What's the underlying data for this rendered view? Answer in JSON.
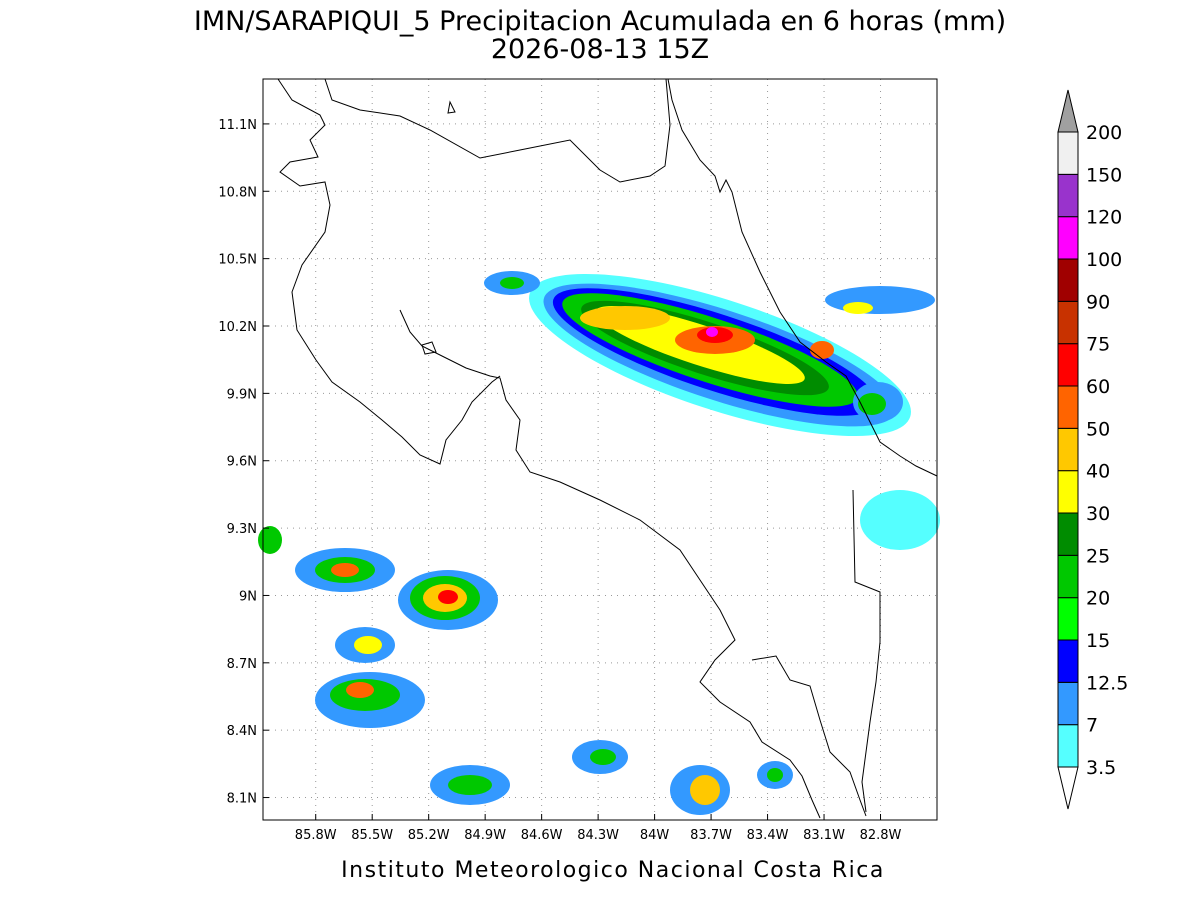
{
  "map": {
    "title": "IMN/SARAPIQUI_5 Precipitacion Acumulada en 6 horas (mm)",
    "subtitle": "2026-08-13 15Z",
    "footer": "Instituto Meteorologico Nacional Costa Rica",
    "lon_range": [
      -86.08,
      -82.5
    ],
    "lat_range": [
      8.0,
      11.3
    ],
    "lon_ticks": [
      {
        "value": -85.8,
        "label": "85.8W"
      },
      {
        "value": -85.5,
        "label": "85.5W"
      },
      {
        "value": -85.2,
        "label": "85.2W"
      },
      {
        "value": -84.9,
        "label": "84.9W"
      },
      {
        "value": -84.6,
        "label": "84.6W"
      },
      {
        "value": -84.3,
        "label": "84.3W"
      },
      {
        "value": -84.0,
        "label": "84W"
      },
      {
        "value": -83.7,
        "label": "83.7W"
      },
      {
        "value": -83.4,
        "label": "83.4W"
      },
      {
        "value": -83.1,
        "label": "83.1W"
      },
      {
        "value": -82.8,
        "label": "82.8W"
      }
    ],
    "lat_ticks": [
      {
        "value": 8.1,
        "label": "8.1N"
      },
      {
        "value": 8.4,
        "label": "8.4N"
      },
      {
        "value": 8.7,
        "label": "8.7N"
      },
      {
        "value": 9.0,
        "label": "9N"
      },
      {
        "value": 9.3,
        "label": "9.3N"
      },
      {
        "value": 9.6,
        "label": "9.6N"
      },
      {
        "value": 9.9,
        "label": "9.9N"
      },
      {
        "value": 10.2,
        "label": "10.2N"
      },
      {
        "value": 10.5,
        "label": "10.5N"
      },
      {
        "value": 10.8,
        "label": "10.8N"
      },
      {
        "value": 11.1,
        "label": "11.1N"
      }
    ],
    "colorbar": {
      "levels": [
        3.5,
        7,
        12.5,
        15,
        20,
        25,
        30,
        40,
        50,
        60,
        75,
        90,
        100,
        120,
        150,
        200
      ],
      "colors": [
        "#55ffff",
        "#3399ff",
        "#0000ff",
        "#00ff00",
        "#00c800",
        "#008c00",
        "#ffff00",
        "#ffc800",
        "#ff6400",
        "#ff0000",
        "#c83200",
        "#a00000",
        "#ff00ff",
        "#9933cc",
        "#f0f0f0"
      ],
      "under_color": "#ffffff",
      "over_color": "#a0a0a0"
    }
  }
}
